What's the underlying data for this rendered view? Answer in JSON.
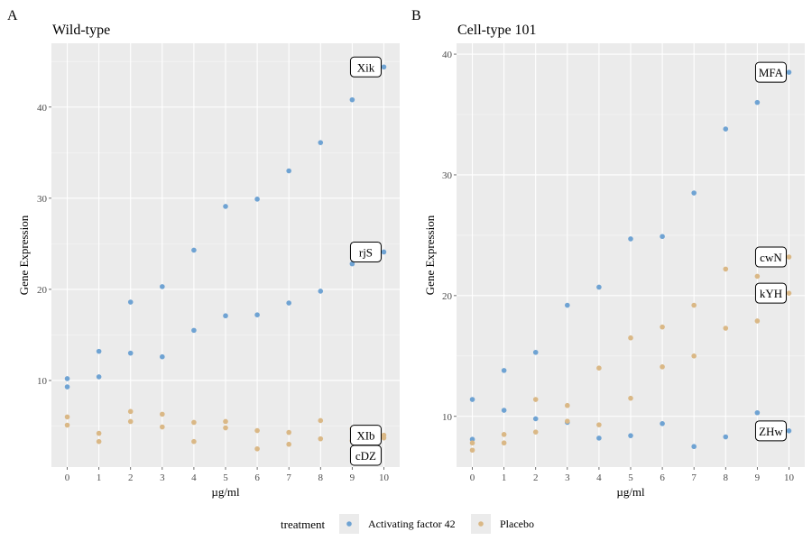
{
  "chart_data": [
    {
      "type": "scatter",
      "panel_label": "A",
      "title": "Wild-type",
      "xlabel": "µg/ml",
      "ylabel": "Gene Expression",
      "xlim": [
        -0.5,
        10.5
      ],
      "ylim": [
        0.5,
        47
      ],
      "xticks": [
        0,
        1,
        2,
        3,
        4,
        5,
        6,
        7,
        8,
        9,
        10
      ],
      "yticks": [
        10,
        20,
        30,
        40
      ],
      "grid": true,
      "series": [
        {
          "name": "Activating factor 42",
          "color": "#6fa3d3",
          "points": [
            [
              0,
              10.2
            ],
            [
              0,
              9.3
            ],
            [
              1,
              13.2
            ],
            [
              1,
              10.4
            ],
            [
              2,
              18.6
            ],
            [
              2,
              13.0
            ],
            [
              3,
              20.3
            ],
            [
              3,
              12.6
            ],
            [
              4,
              24.3
            ],
            [
              4,
              15.5
            ],
            [
              5,
              29.1
            ],
            [
              5,
              17.1
            ],
            [
              6,
              29.9
            ],
            [
              6,
              17.2
            ],
            [
              7,
              33.0
            ],
            [
              7,
              18.5
            ],
            [
              8,
              36.1
            ],
            [
              8,
              19.8
            ],
            [
              9,
              40.8
            ],
            [
              9,
              22.8
            ],
            [
              10,
              44.4
            ],
            [
              10,
              24.1
            ]
          ]
        },
        {
          "name": "Placebo",
          "color": "#dab886",
          "points": [
            [
              0,
              6.0
            ],
            [
              0,
              5.1
            ],
            [
              1,
              4.2
            ],
            [
              1,
              3.3
            ],
            [
              2,
              6.6
            ],
            [
              2,
              5.5
            ],
            [
              3,
              6.3
            ],
            [
              3,
              4.9
            ],
            [
              4,
              5.4
            ],
            [
              4,
              3.3
            ],
            [
              5,
              5.5
            ],
            [
              5,
              4.8
            ],
            [
              6,
              4.5
            ],
            [
              6,
              2.5
            ],
            [
              7,
              4.3
            ],
            [
              7,
              3.0
            ],
            [
              8,
              5.6
            ],
            [
              8,
              3.6
            ],
            [
              9,
              4.7
            ],
            [
              9,
              3.4
            ],
            [
              10,
              4.0
            ],
            [
              10,
              3.7
            ]
          ]
        }
      ],
      "annotations": [
        {
          "label": "Xik",
          "x": 10,
          "y": 44.4
        },
        {
          "label": "rjS",
          "x": 10,
          "y": 24.1
        },
        {
          "label": "XIb",
          "x": 10,
          "y": 4.0
        },
        {
          "label": "cDZ",
          "x": 10,
          "y": 3.7
        }
      ]
    },
    {
      "type": "scatter",
      "panel_label": "B",
      "title": "Cell-type 101",
      "xlabel": "µg/ml",
      "ylabel": "Gene Expression",
      "xlim": [
        -0.5,
        10.5
      ],
      "ylim": [
        5.8,
        40.9
      ],
      "xticks": [
        0,
        1,
        2,
        3,
        4,
        5,
        6,
        7,
        8,
        9,
        10
      ],
      "yticks": [
        10,
        20,
        30,
        40
      ],
      "grid": true,
      "series": [
        {
          "name": "Activating factor 42",
          "color": "#6fa3d3",
          "points": [
            [
              0,
              11.4
            ],
            [
              0,
              8.1
            ],
            [
              1,
              13.8
            ],
            [
              1,
              10.5
            ],
            [
              2,
              15.3
            ],
            [
              2,
              9.8
            ],
            [
              3,
              19.2
            ],
            [
              3,
              9.5
            ],
            [
              4,
              20.7
            ],
            [
              4,
              8.2
            ],
            [
              5,
              24.7
            ],
            [
              5,
              8.4
            ],
            [
              6,
              24.9
            ],
            [
              6,
              9.4
            ],
            [
              7,
              28.5
            ],
            [
              7,
              7.5
            ],
            [
              8,
              33.8
            ],
            [
              8,
              8.3
            ],
            [
              9,
              36.0
            ],
            [
              9,
              10.3
            ],
            [
              10,
              38.5
            ],
            [
              10,
              8.8
            ]
          ]
        },
        {
          "name": "Placebo",
          "color": "#dab886",
          "points": [
            [
              0,
              7.8
            ],
            [
              0,
              7.2
            ],
            [
              1,
              8.5
            ],
            [
              1,
              7.8
            ],
            [
              2,
              11.4
            ],
            [
              2,
              8.7
            ],
            [
              3,
              10.9
            ],
            [
              3,
              9.6
            ],
            [
              4,
              14.0
            ],
            [
              4,
              9.3
            ],
            [
              5,
              16.5
            ],
            [
              5,
              11.5
            ],
            [
              6,
              17.4
            ],
            [
              6,
              14.1
            ],
            [
              7,
              19.2
            ],
            [
              7,
              15.0
            ],
            [
              8,
              22.2
            ],
            [
              8,
              17.3
            ],
            [
              9,
              21.6
            ],
            [
              9,
              17.9
            ],
            [
              10,
              23.2
            ],
            [
              10,
              20.2
            ]
          ]
        }
      ],
      "annotations": [
        {
          "label": "MFA",
          "x": 10,
          "y": 38.5
        },
        {
          "label": "cwN",
          "x": 10,
          "y": 23.2
        },
        {
          "label": "kYH",
          "x": 10,
          "y": 20.2
        },
        {
          "label": "ZHw",
          "x": 10,
          "y": 8.8
        }
      ]
    }
  ],
  "legend": {
    "title": "treatment",
    "items": [
      {
        "label": "Activating factor 42",
        "color": "#6fa3d3"
      },
      {
        "label": "Placebo",
        "color": "#dab886"
      }
    ]
  }
}
